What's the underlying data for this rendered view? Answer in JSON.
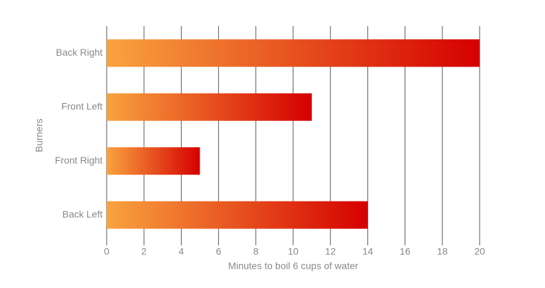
{
  "chart_data": {
    "type": "bar",
    "orientation": "horizontal",
    "x_label": "Minutes to boil 6 cups of water",
    "y_label": "Burners",
    "categories": [
      "Back Right",
      "Front Left",
      "Front Right",
      "Back Left"
    ],
    "values": [
      20,
      11,
      5,
      14
    ],
    "gradient": [
      "#f9a33f",
      "#d50000"
    ],
    "xlim": [
      0,
      20
    ],
    "xticks": [
      0,
      2,
      4,
      6,
      8,
      10,
      12,
      14,
      16,
      18,
      20
    ],
    "grid": true
  }
}
